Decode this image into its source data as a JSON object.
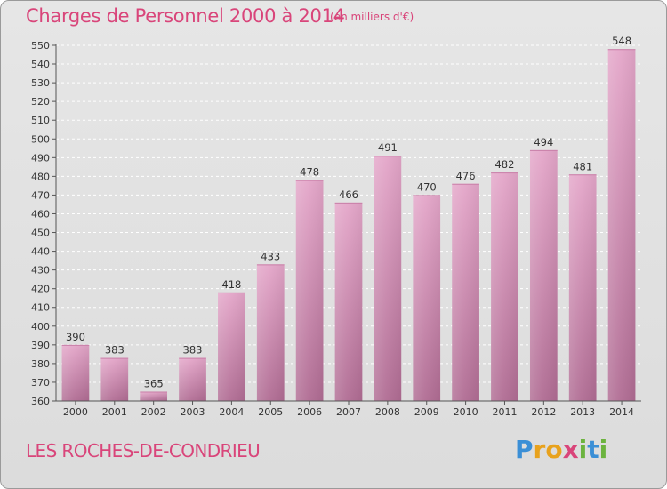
{
  "header": {
    "title": "Charges de Personnel 2000 à 2014",
    "subtitle": "(en milliers d'€)"
  },
  "footer": {
    "commune": "LES ROCHES-DE-CONDRIEU",
    "logo_letters": [
      "P",
      "r",
      "o",
      "x",
      "i",
      "t",
      "i"
    ],
    "logo_colors": [
      "#3b8fd6",
      "#e8a21d",
      "#e8a21d",
      "#d9457a",
      "#6cb33f",
      "#3b8fd6",
      "#6cb33f"
    ]
  },
  "chart_data": {
    "type": "bar",
    "title": "Charges de Personnel 2000 à 2014",
    "subtitle": "(en milliers d'€)",
    "categories": [
      "2000",
      "2001",
      "2002",
      "2003",
      "2004",
      "2005",
      "2006",
      "2007",
      "2008",
      "2009",
      "2010",
      "2011",
      "2012",
      "2013",
      "2014"
    ],
    "values": [
      390,
      383,
      365,
      383,
      418,
      433,
      478,
      466,
      491,
      470,
      476,
      482,
      494,
      481,
      548
    ],
    "data_labels": [
      "390",
      "383",
      "365",
      "383",
      "418",
      "433",
      "478",
      "466",
      "491",
      "470",
      "476",
      "482",
      "494",
      "481",
      "548"
    ],
    "ylim": [
      360,
      550
    ],
    "yticks": [
      360,
      370,
      380,
      390,
      400,
      410,
      420,
      430,
      440,
      450,
      460,
      470,
      480,
      490,
      500,
      510,
      520,
      530,
      540,
      550
    ],
    "ytick_labels": [
      "360",
      "370",
      "380",
      "390",
      "400",
      "410",
      "420",
      "430",
      "440",
      "450",
      "460",
      "470",
      "480",
      "490",
      "500",
      "510",
      "520",
      "530",
      "540",
      "550"
    ],
    "grid": true,
    "bar_color_top": "#e4a6c9",
    "bar_color_bottom": "#b06c93"
  }
}
